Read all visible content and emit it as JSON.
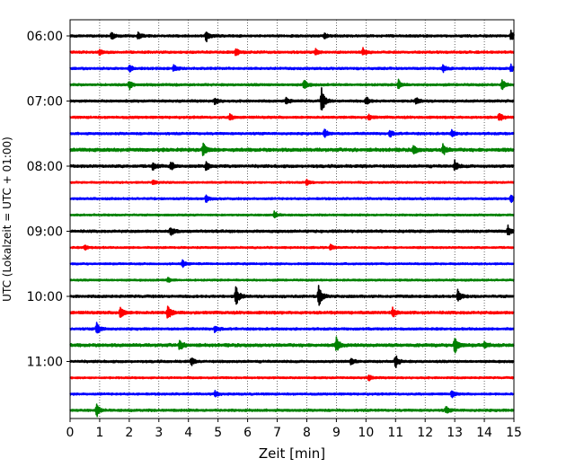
{
  "chart_data": {
    "type": "line",
    "title": "",
    "xlabel": "Zeit  [min]",
    "ylabel": "UTC (Lokalzeit = UTC + 01:00)",
    "xlim": [
      0,
      15
    ],
    "x_ticks": [
      "0",
      "1",
      "2",
      "3",
      "4",
      "5",
      "6",
      "7",
      "8",
      "9",
      "10",
      "11",
      "12",
      "13",
      "14",
      "15"
    ],
    "y_ticks": [
      "06:00",
      "07:00",
      "08:00",
      "09:00",
      "10:00",
      "11:00"
    ],
    "grid": "vertical dotted lines at every minute",
    "trace_start": "06:00",
    "trace_interval_minutes": 15,
    "color_cycle": [
      "#000000",
      "#ff0000",
      "#0000ff",
      "#008000"
    ],
    "traces": [
      {
        "start": "06:00",
        "noise": 1.0,
        "events": [
          {
            "t": 1.4,
            "a": 4
          },
          {
            "t": 2.3,
            "a": 4
          },
          {
            "t": 4.6,
            "a": 6
          },
          {
            "t": 8.6,
            "a": 3
          },
          {
            "t": 14.9,
            "a": 5
          }
        ]
      },
      {
        "start": "06:15",
        "noise": 1.0,
        "events": [
          {
            "t": 1.0,
            "a": 3
          },
          {
            "t": 5.6,
            "a": 5
          },
          {
            "t": 8.3,
            "a": 3
          },
          {
            "t": 9.9,
            "a": 4
          }
        ]
      },
      {
        "start": "06:30",
        "noise": 1.0,
        "events": [
          {
            "t": 2.0,
            "a": 4
          },
          {
            "t": 3.5,
            "a": 4
          },
          {
            "t": 12.6,
            "a": 4
          },
          {
            "t": 14.9,
            "a": 4
          }
        ]
      },
      {
        "start": "06:45",
        "noise": 1.0,
        "events": [
          {
            "t": 2.0,
            "a": 5
          },
          {
            "t": 7.9,
            "a": 6
          },
          {
            "t": 11.1,
            "a": 5
          },
          {
            "t": 14.6,
            "a": 6
          }
        ]
      },
      {
        "start": "07:00",
        "noise": 1.0,
        "events": [
          {
            "t": 4.9,
            "a": 4
          },
          {
            "t": 7.3,
            "a": 4
          },
          {
            "t": 8.5,
            "a": 14
          },
          {
            "t": 10.0,
            "a": 5
          },
          {
            "t": 11.7,
            "a": 4
          }
        ]
      },
      {
        "start": "07:15",
        "noise": 1.0,
        "events": [
          {
            "t": 5.4,
            "a": 3
          },
          {
            "t": 10.1,
            "a": 3
          },
          {
            "t": 14.5,
            "a": 5
          }
        ]
      },
      {
        "start": "07:30",
        "noise": 1.0,
        "events": [
          {
            "t": 8.6,
            "a": 5
          },
          {
            "t": 10.8,
            "a": 4
          },
          {
            "t": 12.9,
            "a": 4
          }
        ]
      },
      {
        "start": "07:45",
        "noise": 1.4,
        "events": [
          {
            "t": 4.5,
            "a": 8
          },
          {
            "t": 11.6,
            "a": 5
          },
          {
            "t": 12.6,
            "a": 6
          }
        ]
      },
      {
        "start": "08:00",
        "noise": 1.2,
        "events": [
          {
            "t": 2.8,
            "a": 4
          },
          {
            "t": 3.4,
            "a": 5
          },
          {
            "t": 4.6,
            "a": 5
          },
          {
            "t": 13.0,
            "a": 6
          }
        ]
      },
      {
        "start": "08:15",
        "noise": 0.8,
        "events": [
          {
            "t": 2.8,
            "a": 3
          },
          {
            "t": 8.0,
            "a": 3
          }
        ]
      },
      {
        "start": "08:30",
        "noise": 0.9,
        "events": [
          {
            "t": 4.6,
            "a": 4
          },
          {
            "t": 14.9,
            "a": 4
          }
        ]
      },
      {
        "start": "08:45",
        "noise": 0.8,
        "events": [
          {
            "t": 6.9,
            "a": 4
          }
        ]
      },
      {
        "start": "09:00",
        "noise": 1.1,
        "events": [
          {
            "t": 3.4,
            "a": 5
          },
          {
            "t": 14.8,
            "a": 6
          }
        ]
      },
      {
        "start": "09:15",
        "noise": 0.8,
        "events": [
          {
            "t": 0.5,
            "a": 3
          },
          {
            "t": 8.8,
            "a": 3
          }
        ]
      },
      {
        "start": "09:30",
        "noise": 0.8,
        "events": [
          {
            "t": 3.8,
            "a": 4
          }
        ]
      },
      {
        "start": "09:45",
        "noise": 0.8,
        "events": [
          {
            "t": 3.3,
            "a": 3
          }
        ]
      },
      {
        "start": "10:00",
        "noise": 1.1,
        "events": [
          {
            "t": 5.6,
            "a": 12
          },
          {
            "t": 8.4,
            "a": 13
          },
          {
            "t": 13.1,
            "a": 7
          }
        ]
      },
      {
        "start": "10:15",
        "noise": 1.2,
        "events": [
          {
            "t": 1.7,
            "a": 7
          },
          {
            "t": 3.3,
            "a": 9
          },
          {
            "t": 10.9,
            "a": 5
          }
        ]
      },
      {
        "start": "10:30",
        "noise": 1.0,
        "events": [
          {
            "t": 0.9,
            "a": 7
          },
          {
            "t": 4.9,
            "a": 4
          }
        ]
      },
      {
        "start": "10:45",
        "noise": 1.3,
        "events": [
          {
            "t": 3.7,
            "a": 6
          },
          {
            "t": 9.0,
            "a": 8
          },
          {
            "t": 13.0,
            "a": 11
          },
          {
            "t": 14.0,
            "a": 4
          }
        ]
      },
      {
        "start": "11:00",
        "noise": 1.0,
        "events": [
          {
            "t": 4.1,
            "a": 4
          },
          {
            "t": 9.5,
            "a": 4
          },
          {
            "t": 11.0,
            "a": 7
          }
        ]
      },
      {
        "start": "11:15",
        "noise": 0.8,
        "events": [
          {
            "t": 10.1,
            "a": 3
          }
        ]
      },
      {
        "start": "11:30",
        "noise": 0.9,
        "events": [
          {
            "t": 4.9,
            "a": 3
          },
          {
            "t": 12.9,
            "a": 4
          }
        ]
      },
      {
        "start": "11:45",
        "noise": 1.0,
        "events": [
          {
            "t": 0.9,
            "a": 7
          },
          {
            "t": 12.7,
            "a": 4
          }
        ]
      }
    ]
  }
}
